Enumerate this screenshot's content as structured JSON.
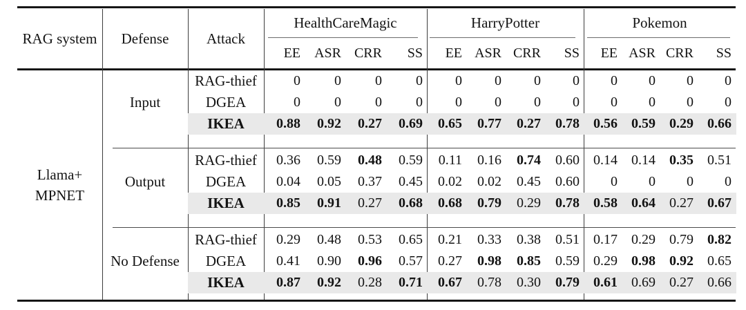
{
  "table": {
    "headers": {
      "rag_system": "RAG system",
      "defense": "Defense",
      "attack": "Attack"
    },
    "datasets": [
      "HealthCareMagic",
      "HarryPotter",
      "Pokemon"
    ],
    "metrics": [
      "EE",
      "ASR",
      "CRR",
      "SS"
    ],
    "rag_system_value": {
      "line1": "Llama+",
      "line2": "MPNET"
    },
    "colors": {
      "highlight_row_bg": "#e9e9e9",
      "rule": "#161616",
      "text": "#131313"
    },
    "groups": [
      {
        "defense": "Input",
        "rows": [
          {
            "attack": "RAG-thief",
            "attack_bold": false,
            "highlight": false,
            "values": [
              "0",
              "0",
              "0",
              "0",
              "0",
              "0",
              "0",
              "0",
              "0",
              "0",
              "0",
              "0"
            ],
            "bold": [
              0,
              0,
              0,
              0,
              0,
              0,
              0,
              0,
              0,
              0,
              0,
              0
            ]
          },
          {
            "attack": "DGEA",
            "attack_bold": false,
            "highlight": false,
            "values": [
              "0",
              "0",
              "0",
              "0",
              "0",
              "0",
              "0",
              "0",
              "0",
              "0",
              "0",
              "0"
            ],
            "bold": [
              0,
              0,
              0,
              0,
              0,
              0,
              0,
              0,
              0,
              0,
              0,
              0
            ]
          },
          {
            "attack": "IKEA",
            "attack_bold": true,
            "highlight": true,
            "values": [
              "0.88",
              "0.92",
              "0.27",
              "0.69",
              "0.65",
              "0.77",
              "0.27",
              "0.78",
              "0.56",
              "0.59",
              "0.29",
              "0.66"
            ],
            "bold": [
              1,
              1,
              1,
              1,
              1,
              1,
              1,
              1,
              1,
              1,
              1,
              1
            ]
          }
        ]
      },
      {
        "defense": "Output",
        "rows": [
          {
            "attack": "RAG-thief",
            "attack_bold": false,
            "highlight": false,
            "values": [
              "0.36",
              "0.59",
              "0.48",
              "0.59",
              "0.11",
              "0.16",
              "0.74",
              "0.60",
              "0.14",
              "0.14",
              "0.35",
              "0.51"
            ],
            "bold": [
              0,
              0,
              1,
              0,
              0,
              0,
              1,
              0,
              0,
              0,
              1,
              0
            ]
          },
          {
            "attack": "DGEA",
            "attack_bold": false,
            "highlight": false,
            "values": [
              "0.04",
              "0.05",
              "0.37",
              "0.45",
              "0.02",
              "0.02",
              "0.45",
              "0.60",
              "0",
              "0",
              "0",
              "0"
            ],
            "bold": [
              0,
              0,
              0,
              0,
              0,
              0,
              0,
              0,
              0,
              0,
              0,
              0
            ]
          },
          {
            "attack": "IKEA",
            "attack_bold": true,
            "highlight": true,
            "values": [
              "0.85",
              "0.91",
              "0.27",
              "0.68",
              "0.68",
              "0.79",
              "0.29",
              "0.78",
              "0.58",
              "0.64",
              "0.27",
              "0.67"
            ],
            "bold": [
              1,
              1,
              0,
              1,
              1,
              1,
              0,
              1,
              1,
              1,
              0,
              1
            ]
          }
        ]
      },
      {
        "defense": "No Defense",
        "rows": [
          {
            "attack": "RAG-thief",
            "attack_bold": false,
            "highlight": false,
            "values": [
              "0.29",
              "0.48",
              "0.53",
              "0.65",
              "0.21",
              "0.33",
              "0.38",
              "0.51",
              "0.17",
              "0.29",
              "0.79",
              "0.82"
            ],
            "bold": [
              0,
              0,
              0,
              0,
              0,
              0,
              0,
              0,
              0,
              0,
              0,
              1
            ]
          },
          {
            "attack": "DGEA",
            "attack_bold": false,
            "highlight": false,
            "values": [
              "0.41",
              "0.90",
              "0.96",
              "0.57",
              "0.27",
              "0.98",
              "0.85",
              "0.59",
              "0.29",
              "0.98",
              "0.92",
              "0.65"
            ],
            "bold": [
              0,
              0,
              1,
              0,
              0,
              1,
              1,
              0,
              0,
              1,
              1,
              0
            ]
          },
          {
            "attack": "IKEA",
            "attack_bold": true,
            "highlight": true,
            "values": [
              "0.87",
              "0.92",
              "0.28",
              "0.71",
              "0.67",
              "0.78",
              "0.30",
              "0.79",
              "0.61",
              "0.69",
              "0.27",
              "0.66"
            ],
            "bold": [
              1,
              1,
              0,
              1,
              1,
              0,
              0,
              1,
              1,
              0,
              0,
              0
            ]
          }
        ]
      }
    ]
  }
}
